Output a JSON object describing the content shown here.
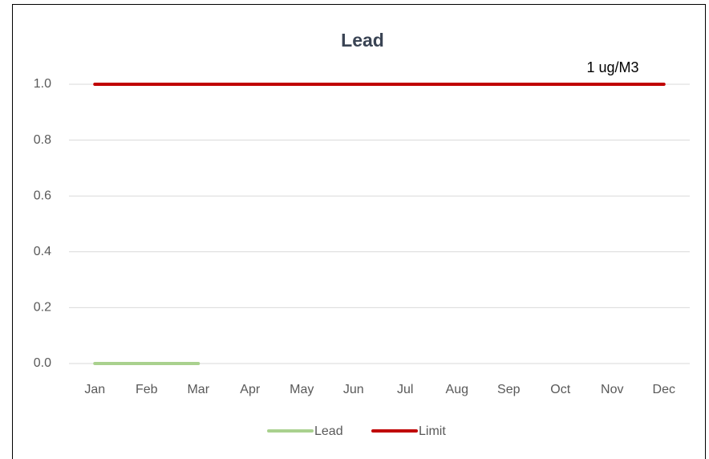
{
  "chart_data": {
    "type": "line",
    "title": "Lead",
    "categories": [
      "Jan",
      "Feb",
      "Mar",
      "Apr",
      "May",
      "Jun",
      "Jul",
      "Aug",
      "Sep",
      "Oct",
      "Nov",
      "Dec"
    ],
    "series": [
      {
        "name": "Lead",
        "color": "#a9d18e",
        "values": [
          0,
          0,
          0,
          null,
          null,
          null,
          null,
          null,
          null,
          null,
          null,
          null
        ]
      },
      {
        "name": "Limit",
        "color": "#c00000",
        "values": [
          1,
          1,
          1,
          1,
          1,
          1,
          1,
          1,
          1,
          1,
          1,
          1
        ]
      }
    ],
    "annotations": [
      "1 ug/M3"
    ],
    "ylim": [
      0,
      1
    ],
    "yticks": [
      {
        "value": 0,
        "label": "0.0"
      },
      0.2,
      0.4,
      0.6,
      0.8,
      {
        "value": 1,
        "label": "1.0"
      }
    ],
    "grid": true,
    "legend": "bottom"
  }
}
